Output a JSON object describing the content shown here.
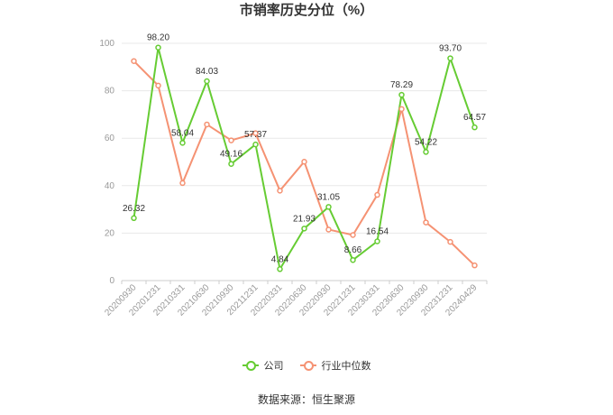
{
  "title": "市销率历史分位（%）",
  "source": "数据来源：恒生聚源",
  "legend": {
    "company": "公司",
    "industry": "行业中位数"
  },
  "colors": {
    "company": "#66cc33",
    "industry": "#f59273",
    "grid": "#e8e8e8",
    "axis": "#cccccc"
  },
  "chart_data": {
    "type": "line",
    "title": "市销率历史分位（%）",
    "x": [
      "20200930",
      "20201231",
      "20210331",
      "20210630",
      "20210930",
      "20211231",
      "20220331",
      "20220630",
      "20220930",
      "20221231",
      "20230331",
      "20230630",
      "20230930",
      "20231231",
      "20240429"
    ],
    "ylim": [
      0,
      100
    ],
    "yticks": [
      0,
      20,
      40,
      60,
      80,
      100
    ],
    "grid": true,
    "legend_position": "bottom",
    "series": [
      {
        "name": "公司",
        "values": [
          26.32,
          98.2,
          58.04,
          84.03,
          49.16,
          57.37,
          4.84,
          21.93,
          31.05,
          8.66,
          16.54,
          78.29,
          54.22,
          93.7,
          64.57
        ],
        "labeled": true
      },
      {
        "name": "行业中位数",
        "values": [
          92.5,
          82.2,
          41.1,
          65.8,
          59.1,
          62.1,
          37.9,
          50.1,
          21.5,
          19.2,
          36.1,
          72.3,
          24.5,
          16.3,
          6.4
        ],
        "labeled": false
      }
    ]
  }
}
